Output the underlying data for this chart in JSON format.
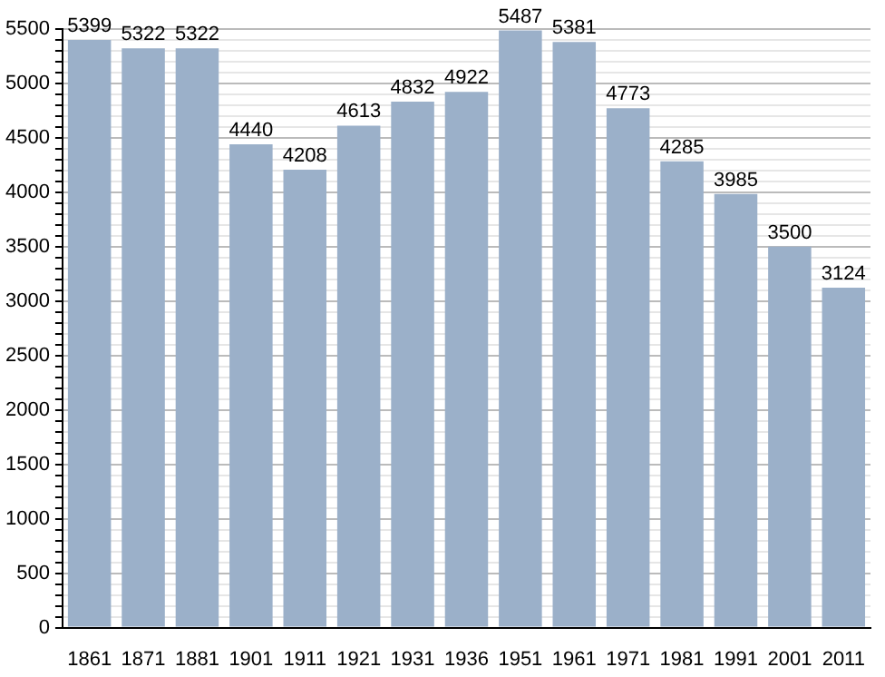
{
  "chart_data": {
    "type": "bar",
    "categories": [
      "1861",
      "1871",
      "1881",
      "1901",
      "1911",
      "1921",
      "1931",
      "1936",
      "1951",
      "1961",
      "1971",
      "1981",
      "1991",
      "2001",
      "2011"
    ],
    "values": [
      5399,
      5322,
      5322,
      4440,
      4208,
      4613,
      4832,
      4922,
      5487,
      5381,
      4773,
      4285,
      3985,
      3500,
      3124
    ],
    "color": "#9bb0c9",
    "data_labels": true,
    "grid": true,
    "ylim": [
      0,
      5500
    ],
    "yticks": [
      0,
      {
        "value": 100,
        "label": null
      },
      {
        "value": 200,
        "label": null
      },
      {
        "value": 300,
        "label": null
      },
      {
        "value": 400,
        "label": null
      },
      500,
      {
        "value": 600,
        "label": null
      },
      {
        "value": 700,
        "label": null
      },
      {
        "value": 800,
        "label": null
      },
      {
        "value": 900,
        "label": null
      },
      1000,
      {
        "value": 1100,
        "label": null
      },
      {
        "value": 1200,
        "label": null
      },
      {
        "value": 1300,
        "label": null
      },
      {
        "value": 1400,
        "label": null
      },
      1500,
      {
        "value": 1600,
        "label": null
      },
      {
        "value": 1700,
        "label": null
      },
      {
        "value": 1800,
        "label": null
      },
      {
        "value": 1900,
        "label": null
      },
      2000,
      {
        "value": 2100,
        "label": null
      },
      {
        "value": 2200,
        "label": null
      },
      {
        "value": 2300,
        "label": null
      },
      {
        "value": 2400,
        "label": null
      },
      2500,
      {
        "value": 2600,
        "label": null
      },
      {
        "value": 2700,
        "label": null
      },
      {
        "value": 2800,
        "label": null
      },
      {
        "value": 2900,
        "label": null
      },
      3000,
      {
        "value": 3100,
        "label": null
      },
      {
        "value": 3200,
        "label": null
      },
      {
        "value": 3300,
        "label": null
      },
      {
        "value": 3400,
        "label": null
      },
      3500,
      {
        "value": 3600,
        "label": null
      },
      {
        "value": 3700,
        "label": null
      },
      {
        "value": 3800,
        "label": null
      },
      {
        "value": 3900,
        "label": null
      },
      4000,
      {
        "value": 4100,
        "label": null
      },
      {
        "value": 4200,
        "label": null
      },
      {
        "value": 4300,
        "label": null
      },
      {
        "value": 4400,
        "label": null
      },
      4500,
      {
        "value": 4600,
        "label": null
      },
      {
        "value": 4700,
        "label": null
      },
      {
        "value": 4800,
        "label": null
      },
      {
        "value": 4900,
        "label": null
      },
      5000,
      {
        "value": 5100,
        "label": null
      },
      {
        "value": 5200,
        "label": null
      },
      {
        "value": 5300,
        "label": null
      },
      {
        "value": 5400,
        "label": null
      },
      5500
    ]
  }
}
